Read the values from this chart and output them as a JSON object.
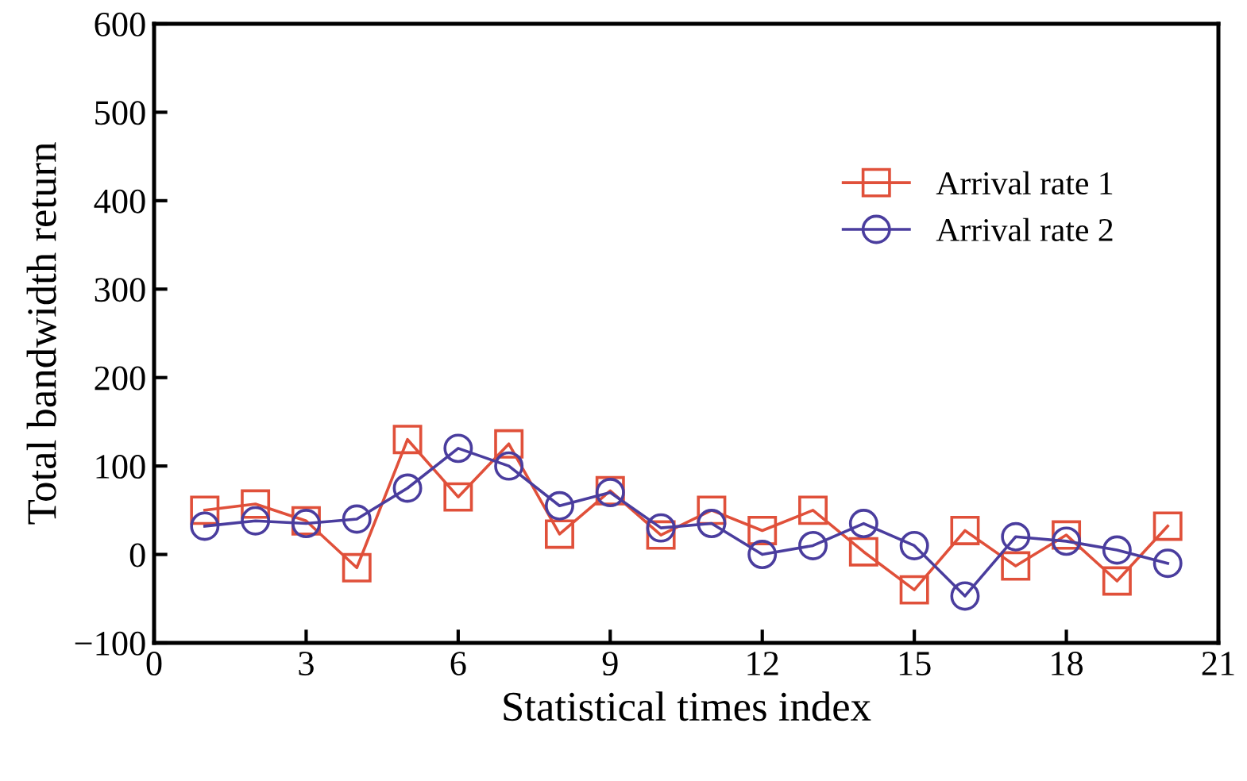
{
  "chart_data": {
    "type": "line",
    "xlabel": "Statistical times index",
    "ylabel": "Total bandwidth return",
    "x": [
      1,
      2,
      3,
      4,
      5,
      6,
      7,
      8,
      9,
      10,
      11,
      12,
      13,
      14,
      15,
      16,
      17,
      18,
      19,
      20
    ],
    "series": [
      {
        "name": "Arrival rate 1",
        "color": "#e0503a",
        "marker": "square",
        "values": [
          50,
          57,
          38,
          -15,
          130,
          65,
          125,
          23,
          72,
          22,
          50,
          27,
          50,
          3,
          -40,
          27,
          -13,
          22,
          -30,
          32
        ]
      },
      {
        "name": "Arrival rate 2",
        "color": "#4a3d9e",
        "marker": "circle",
        "values": [
          32,
          38,
          35,
          40,
          75,
          120,
          100,
          55,
          70,
          30,
          35,
          0,
          10,
          35,
          10,
          -47,
          20,
          15,
          5,
          -10
        ]
      }
    ],
    "xlim": [
      0,
      21
    ],
    "xticks": [
      0,
      3,
      6,
      9,
      12,
      15,
      18,
      21
    ],
    "ylim": [
      -100,
      600
    ],
    "yticks": [
      {
        "value": -100,
        "label": "−100"
      },
      0,
      100,
      200,
      300,
      400,
      500,
      600
    ],
    "legend": "right",
    "grid": false,
    "line_style": "solid"
  }
}
